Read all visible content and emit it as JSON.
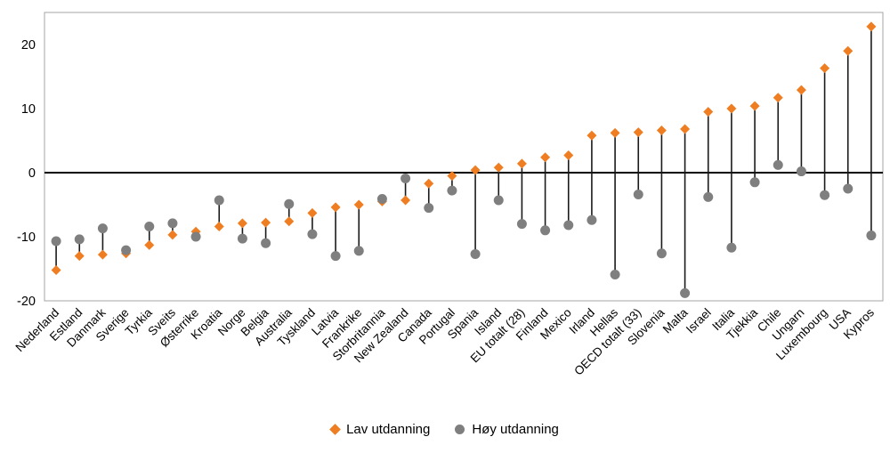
{
  "chart_data": {
    "type": "scatter",
    "subtype": "dumbbell",
    "title": "",
    "xlabel": "",
    "ylabel": "",
    "ylim": [
      -20,
      25
    ],
    "yticks": [
      20,
      10,
      0,
      -10,
      -20
    ],
    "zero_line": true,
    "grid": false,
    "legend_position": "bottom",
    "plot_border_color": "#a6a6a6",
    "connector_color": "#1a1a1a",
    "categories": [
      "Nederland",
      "Estland",
      "Danmark",
      "Sverige",
      "Tyrkia",
      "Sveits",
      "Østerrike",
      "Kroatia",
      "Norge",
      "Belgia",
      "Australia",
      "Tyskland",
      "Latvia",
      "Frankrike",
      "Storbritannia",
      "New Zealand",
      "Canada",
      "Portugal",
      "Spania",
      "Island",
      "EU totalt (28)",
      "Finland",
      "Mexico",
      "Irland",
      "Hellas",
      "OECD totalt (33)",
      "Slovenia",
      "Malta",
      "Israel",
      "Italia",
      "Tjekkia",
      "Chile",
      "Ungarn",
      "Luxembourg",
      "USA",
      "Kypros"
    ],
    "series": [
      {
        "name": "Lav utdanning",
        "marker": "diamond",
        "color": "#ef7d22",
        "values": [
          -15.2,
          -13.0,
          -12.8,
          -12.6,
          -11.3,
          -9.7,
          -9.2,
          -8.4,
          -7.9,
          -7.8,
          -7.6,
          -6.3,
          -5.4,
          -5.0,
          -4.5,
          -4.3,
          -1.7,
          -0.5,
          0.4,
          0.8,
          1.4,
          2.4,
          2.7,
          5.8,
          6.2,
          6.3,
          6.6,
          6.8,
          9.5,
          10.0,
          10.4,
          11.7,
          12.9,
          16.3,
          19.0,
          22.8
        ]
      },
      {
        "name": "Høy utdanning",
        "marker": "circle",
        "color": "#7f7f7f",
        "values": [
          -10.7,
          -10.4,
          -8.7,
          -12.1,
          -8.4,
          -7.9,
          -10.0,
          -4.3,
          -10.3,
          -11.0,
          -4.9,
          -9.6,
          -13.0,
          -12.2,
          -4.1,
          -0.9,
          -5.5,
          -2.8,
          -12.7,
          -4.3,
          -8.0,
          -9.0,
          -8.2,
          -7.4,
          -15.9,
          -3.4,
          -12.6,
          -18.8,
          -3.8,
          -11.7,
          -1.5,
          1.2,
          0.2,
          -3.5,
          -2.5,
          -9.8
        ]
      }
    ]
  }
}
